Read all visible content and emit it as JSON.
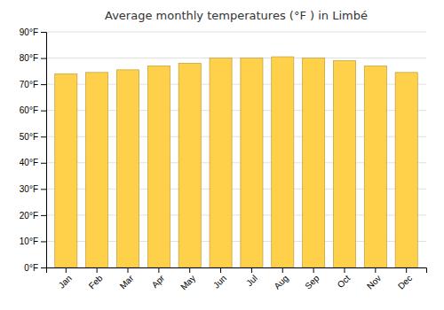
{
  "chart_data": {
    "type": "bar",
    "title": "Average monthly temperatures (°F ) in Limbé",
    "categories": [
      "Jan",
      "Feb",
      "Mar",
      "Apr",
      "May",
      "Jun",
      "Jul",
      "Aug",
      "Sep",
      "Oct",
      "Nov",
      "Dec"
    ],
    "values": [
      74,
      74.5,
      75.5,
      77,
      78,
      80,
      80,
      80.5,
      80,
      79,
      77,
      74.5
    ],
    "color": "#FFD04A",
    "ylim": [
      0,
      90
    ],
    "yticks": [
      {
        "value": 0,
        "label": "0°F"
      },
      {
        "value": 10,
        "label": "10°F"
      },
      {
        "value": 20,
        "label": "20°F"
      },
      {
        "value": 30,
        "label": "30°F"
      },
      {
        "value": 40,
        "label": "40°F"
      },
      {
        "value": 50,
        "label": "50°F"
      },
      {
        "value": 60,
        "label": "60°F"
      },
      {
        "value": 70,
        "label": "70°F"
      },
      {
        "value": 80,
        "label": "80°F"
      },
      {
        "value": 90,
        "label": "90°F"
      }
    ],
    "grid": true
  }
}
